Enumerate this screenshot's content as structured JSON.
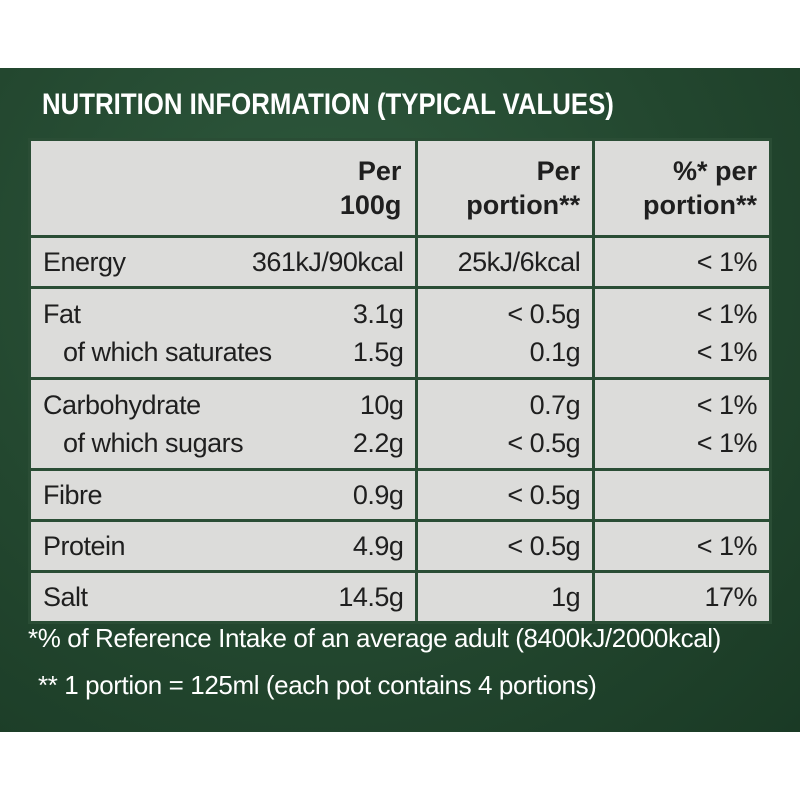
{
  "title": "NUTRITION INFORMATION (TYPICAL VALUES)",
  "headers": {
    "col1": "",
    "col2_line1": "Per",
    "col2_line2": "100g",
    "col3_line1": "Per",
    "col3_line2": "portion**",
    "col4_line1": "%* per",
    "col4_line2": "portion**"
  },
  "rows": [
    {
      "labels": [
        "Energy"
      ],
      "per100g": [
        "361kJ/90kcal"
      ],
      "perPortion": [
        "25kJ/6kcal"
      ],
      "ri": [
        "< 1%"
      ]
    },
    {
      "labels": [
        "Fat",
        "of which saturates"
      ],
      "per100g": [
        "3.1g",
        "1.5g"
      ],
      "perPortion": [
        "< 0.5g",
        "0.1g"
      ],
      "ri": [
        "< 1%",
        "< 1%"
      ]
    },
    {
      "labels": [
        "Carbohydrate",
        "of which sugars"
      ],
      "per100g": [
        "10g",
        "2.2g"
      ],
      "perPortion": [
        "0.7g",
        "< 0.5g"
      ],
      "ri": [
        "< 1%",
        "< 1%"
      ]
    },
    {
      "labels": [
        "Fibre"
      ],
      "per100g": [
        "0.9g"
      ],
      "perPortion": [
        "< 0.5g"
      ],
      "ri": [
        ""
      ]
    },
    {
      "labels": [
        "Protein"
      ],
      "per100g": [
        "4.9g"
      ],
      "perPortion": [
        "< 0.5g"
      ],
      "ri": [
        "< 1%"
      ]
    },
    {
      "labels": [
        "Salt"
      ],
      "per100g": [
        "14.5g"
      ],
      "perPortion": [
        "1g"
      ],
      "ri": [
        "17%"
      ]
    }
  ],
  "footnotes": {
    "ri": "*% of Reference Intake of an average adult (8400kJ/2000kcal)",
    "portion": "** 1 portion = 125ml (each pot contains 4 portions)"
  },
  "colors": {
    "background_green": "#23472f",
    "table_fill": "#dcdcda",
    "text_light": "#ffffff"
  }
}
